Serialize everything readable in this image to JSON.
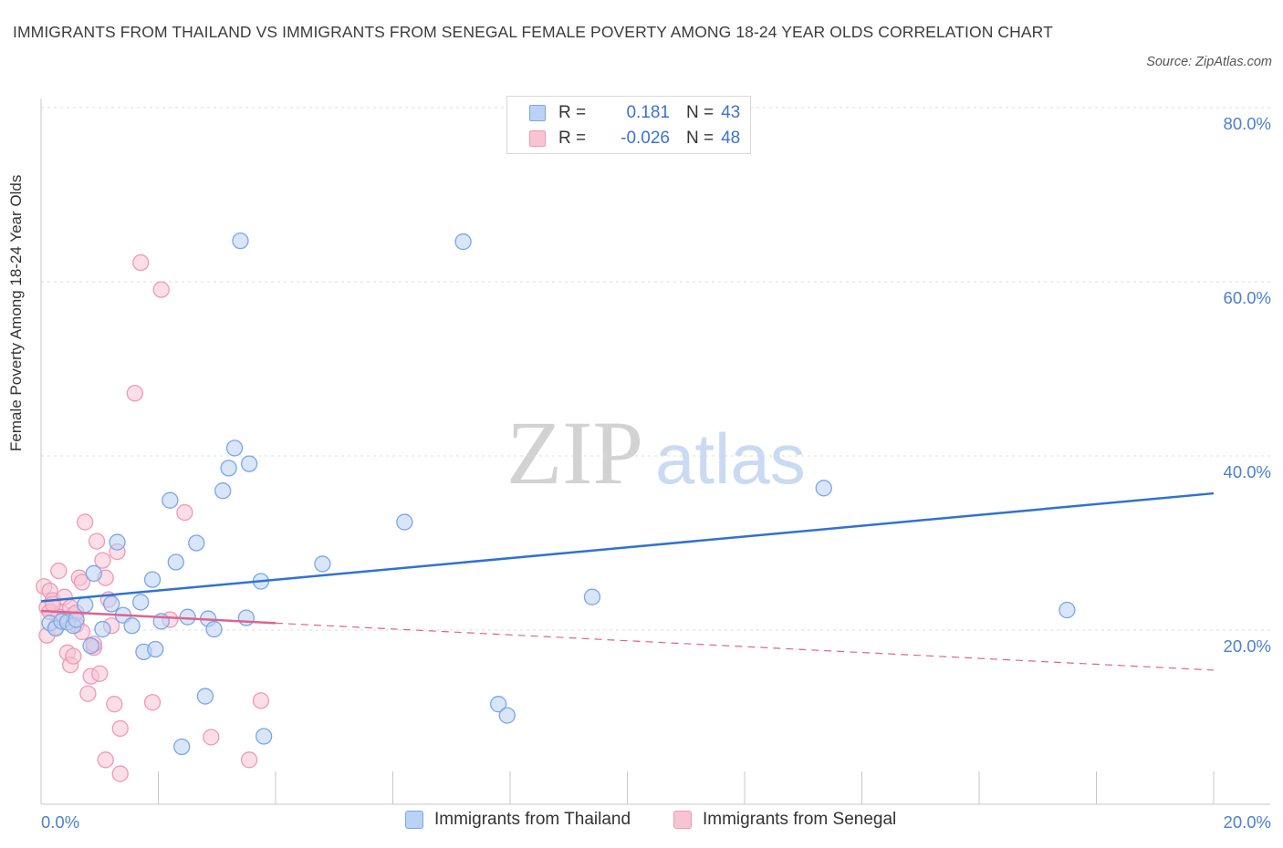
{
  "title": "IMMIGRANTS FROM THAILAND VS IMMIGRANTS FROM SENEGAL FEMALE POVERTY AMONG 18-24 YEAR OLDS CORRELATION CHART",
  "source": "Source: ZipAtlas.com",
  "watermark": {
    "zip": "ZIP",
    "atlas": "atlas"
  },
  "legend": {
    "rows": [
      {
        "r_label": "R =",
        "r_value": "0.181",
        "n_label": "N =",
        "n_value": "43"
      },
      {
        "r_label": "R =",
        "r_value": "-0.026",
        "n_label": "N =",
        "n_value": "48"
      }
    ]
  },
  "bottom_legend": {
    "thailand": "Immigrants from Thailand",
    "senegal": "Immigrants from Senegal"
  },
  "colors": {
    "thailand_fill": "#b9d2f5",
    "thailand_stroke": "#7aa6e6",
    "thailand_line": "#2f72d2",
    "senegal_fill": "#f8c3d3",
    "senegal_stroke": "#ee9ab4",
    "senegal_line": "#e0628f",
    "tick_label": "#4a7fd0",
    "grid": "#d9dce3"
  },
  "chart_data": {
    "type": "scatter",
    "title": "IMMIGRANTS FROM THAILAND VS IMMIGRANTS FROM SENEGAL FEMALE POVERTY AMONG 18-24 YEAR OLDS CORRELATION CHART",
    "xlabel": "",
    "ylabel": "Female Poverty Among 18-24 Year Olds",
    "xlim": [
      0,
      20
    ],
    "ylim": [
      0,
      80
    ],
    "x_tick_labels": [
      "0.0%",
      "20.0%"
    ],
    "y_tick_values": [
      20,
      40,
      60,
      80
    ],
    "y_tick_labels": [
      "20.0%",
      "40.0%",
      "60.0%",
      "80.0%"
    ],
    "grid": true,
    "legend_position": "top-center",
    "series": [
      {
        "name": "Immigrants from Thailand",
        "points": [
          [
            0.15,
            20.8
          ],
          [
            0.25,
            20.2
          ],
          [
            0.35,
            21.0
          ],
          [
            0.45,
            20.9
          ],
          [
            0.55,
            20.5
          ],
          [
            0.6,
            21.2
          ],
          [
            0.75,
            22.9
          ],
          [
            0.85,
            18.2
          ],
          [
            0.9,
            26.5
          ],
          [
            1.05,
            20.1
          ],
          [
            1.2,
            23.0
          ],
          [
            1.3,
            30.1
          ],
          [
            1.4,
            21.7
          ],
          [
            1.55,
            20.5
          ],
          [
            1.7,
            23.2
          ],
          [
            1.75,
            17.5
          ],
          [
            1.9,
            25.8
          ],
          [
            1.95,
            17.8
          ],
          [
            2.05,
            21.0
          ],
          [
            2.2,
            34.9
          ],
          [
            2.3,
            27.8
          ],
          [
            2.5,
            21.5
          ],
          [
            2.65,
            30.0
          ],
          [
            2.85,
            21.3
          ],
          [
            2.95,
            20.1
          ],
          [
            3.1,
            36.0
          ],
          [
            3.2,
            38.6
          ],
          [
            3.3,
            40.9
          ],
          [
            3.55,
            39.1
          ],
          [
            3.75,
            25.6
          ],
          [
            2.8,
            12.4
          ],
          [
            2.4,
            6.6
          ],
          [
            3.8,
            7.8
          ],
          [
            4.8,
            27.6
          ],
          [
            6.2,
            32.4
          ],
          [
            7.8,
            11.5
          ],
          [
            7.95,
            10.2
          ],
          [
            9.4,
            23.8
          ],
          [
            13.35,
            36.3
          ],
          [
            17.5,
            22.3
          ],
          [
            3.4,
            64.7
          ],
          [
            7.2,
            64.6
          ],
          [
            3.5,
            21.4
          ]
        ]
      },
      {
        "name": "Immigrants from Senegal",
        "points": [
          [
            0.05,
            25.0
          ],
          [
            0.1,
            22.6
          ],
          [
            0.1,
            19.4
          ],
          [
            0.15,
            24.5
          ],
          [
            0.2,
            23.4
          ],
          [
            0.25,
            20.3
          ],
          [
            0.3,
            26.8
          ],
          [
            0.35,
            22.0
          ],
          [
            0.4,
            21.3
          ],
          [
            0.45,
            17.4
          ],
          [
            0.5,
            16.0
          ],
          [
            0.55,
            21.8
          ],
          [
            0.6,
            20.6
          ],
          [
            0.65,
            26.0
          ],
          [
            0.7,
            25.5
          ],
          [
            0.75,
            32.4
          ],
          [
            0.8,
            12.7
          ],
          [
            0.85,
            14.7
          ],
          [
            0.9,
            18.0
          ],
          [
            0.95,
            30.2
          ],
          [
            1.0,
            15.0
          ],
          [
            1.05,
            28.0
          ],
          [
            1.1,
            26.0
          ],
          [
            1.15,
            23.5
          ],
          [
            1.2,
            20.5
          ],
          [
            1.25,
            11.5
          ],
          [
            1.3,
            29.0
          ],
          [
            1.35,
            8.7
          ],
          [
            1.1,
            5.1
          ],
          [
            1.35,
            3.5
          ],
          [
            1.6,
            47.2
          ],
          [
            1.7,
            62.2
          ],
          [
            1.9,
            11.7
          ],
          [
            2.05,
            59.1
          ],
          [
            2.2,
            21.2
          ],
          [
            2.45,
            33.5
          ],
          [
            2.9,
            7.7
          ],
          [
            3.55,
            5.1
          ],
          [
            3.75,
            11.9
          ],
          [
            0.4,
            23.8
          ],
          [
            0.55,
            17.0
          ],
          [
            0.7,
            19.8
          ],
          [
            0.3,
            21.5
          ],
          [
            0.5,
            22.6
          ],
          [
            0.6,
            22.0
          ],
          [
            0.15,
            22.1
          ],
          [
            0.2,
            23.0
          ],
          [
            0.9,
            18.4
          ]
        ]
      }
    ],
    "trend_lines": [
      {
        "series": "Immigrants from Thailand",
        "x": [
          0,
          20
        ],
        "y": [
          23.3,
          35.7
        ],
        "style": "solid"
      },
      {
        "series": "Immigrants from Senegal",
        "x": [
          0,
          4
        ],
        "y": [
          22.2,
          20.8
        ],
        "style": "solid"
      },
      {
        "series": "Immigrants from Senegal",
        "x": [
          4,
          20
        ],
        "y": [
          20.8,
          15.4
        ],
        "style": "dashed"
      }
    ]
  }
}
